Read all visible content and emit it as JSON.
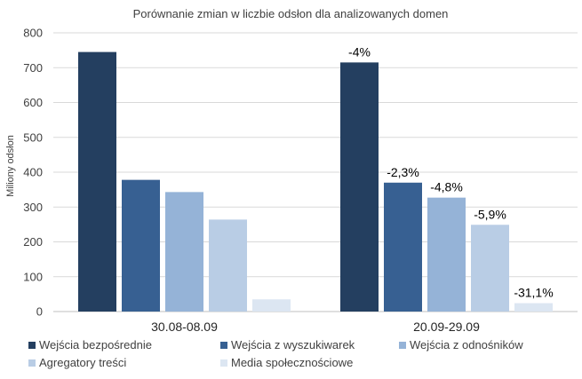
{
  "chart_data": {
    "type": "bar",
    "title": "Porównanie zmian w liczbie odsłon dla analizowanych domen",
    "ylabel": "Miliony odsłon",
    "xlabel": "",
    "ylim": [
      0,
      800
    ],
    "yticks": [
      "0",
      "100",
      "200",
      "300",
      "400",
      "500",
      "600",
      "700",
      "800"
    ],
    "ytick_values": [
      0,
      100,
      200,
      300,
      400,
      500,
      600,
      700,
      800
    ],
    "grid": true,
    "legend_position": "bottom",
    "categories": [
      "30.08-08.09",
      "20.09-29.09"
    ],
    "series": [
      {
        "name": "Wejścia bezpośrednie",
        "color": "#243f60",
        "values": [
          745,
          715
        ],
        "labels": [
          "",
          "-4%"
        ]
      },
      {
        "name": "Wejścia z wyszukiwarek",
        "color": "#376092",
        "values": [
          378,
          370
        ],
        "labels": [
          "",
          "-2,3%"
        ]
      },
      {
        "name": "Wejścia z odnośników",
        "color": "#95b3d7",
        "values": [
          343,
          327
        ],
        "labels": [
          "",
          "-4,8%"
        ]
      },
      {
        "name": "Agregatory treści",
        "color": "#b9cde5",
        "values": [
          264,
          249
        ],
        "labels": [
          "",
          "-5,9%"
        ]
      },
      {
        "name": "Media społecznościowe",
        "color": "#dce6f2",
        "values": [
          35,
          24
        ],
        "labels": [
          "",
          "-31,1%"
        ]
      }
    ]
  }
}
